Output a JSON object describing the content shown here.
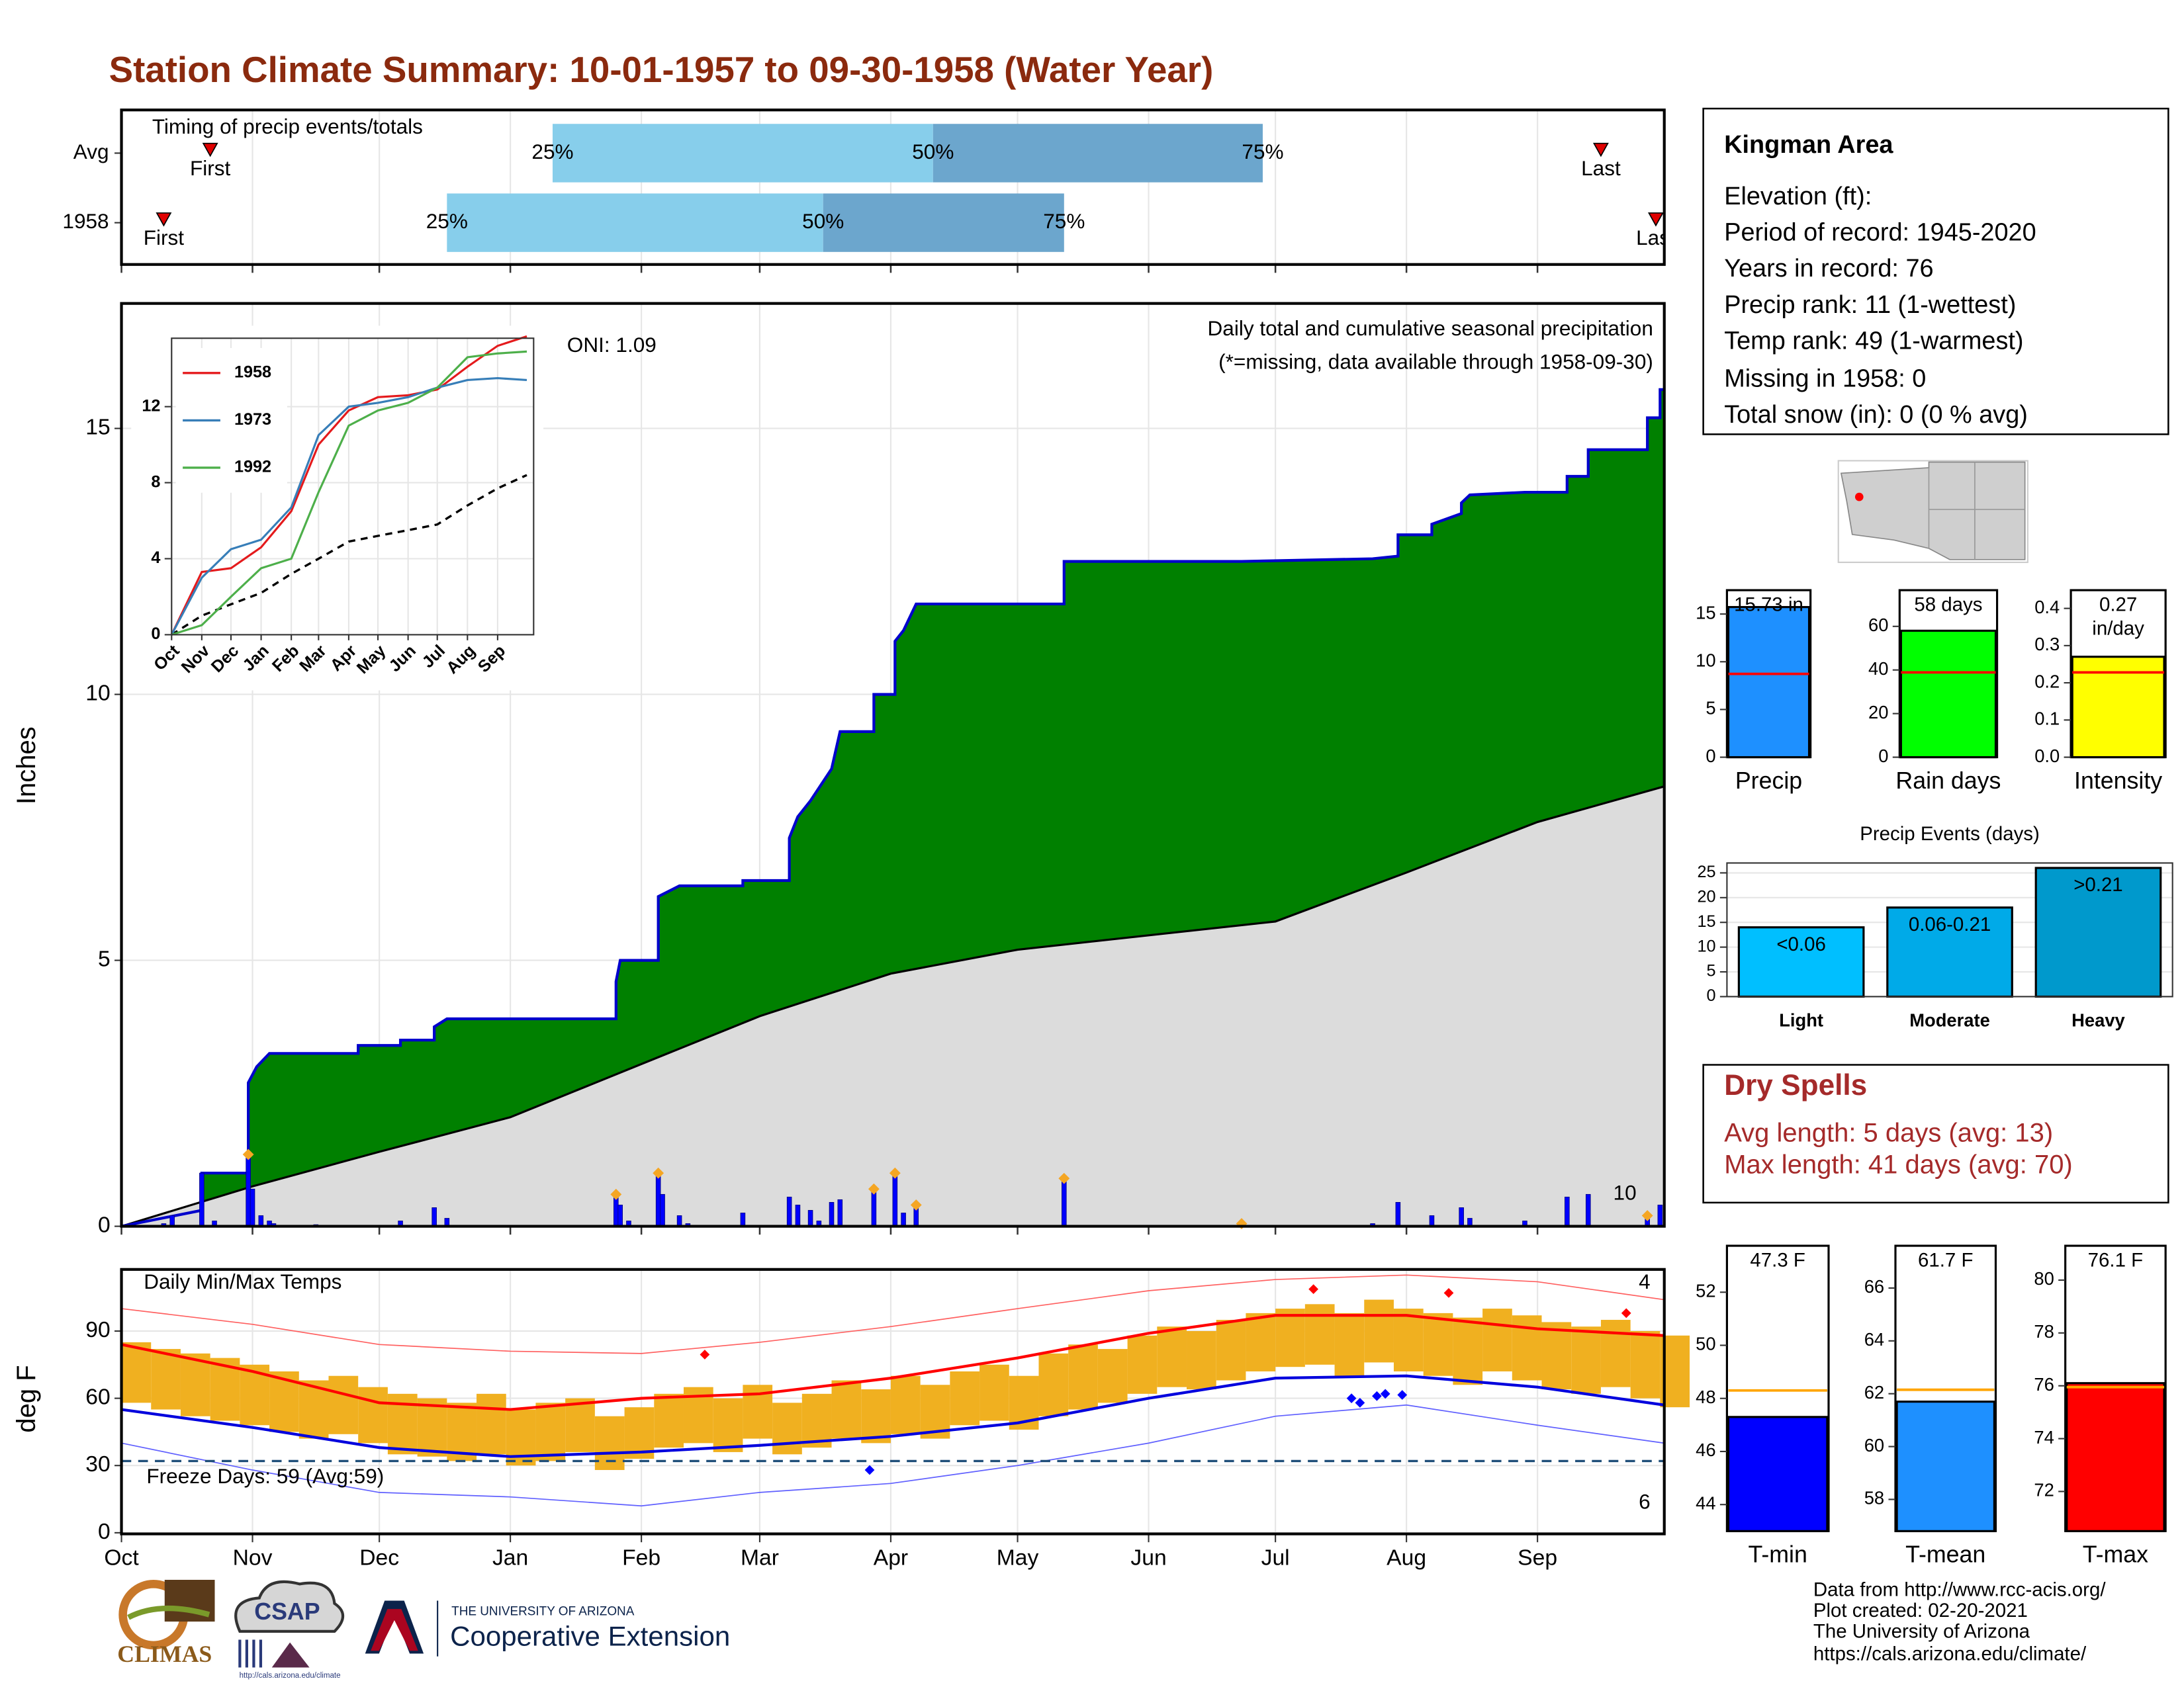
{
  "title": "Station Climate Summary: 10-01-1957 to 09-30-1958 (Water Year)",
  "chart_data": [
    {
      "type": "timing",
      "subtitle": "Timing of precip events/totals",
      "xlim": [
        0,
        365
      ],
      "labels": {
        "first": "First",
        "p25": "25%",
        "p50": "50%",
        "p75": "75%",
        "last": "Last"
      },
      "colors": [
        "#87ceeb",
        "#6ca6cd"
      ],
      "marker_color": "#e00000",
      "rows": [
        {
          "name": "Avg",
          "first": 21,
          "p25": 102,
          "p50": 192,
          "p75": 270,
          "last": 350
        },
        {
          "name": "1958",
          "first": 10,
          "p25": 77,
          "p50": 166,
          "p75": 223,
          "last": 363
        }
      ]
    },
    {
      "type": "cumulative",
      "title": "Daily total and cumulative seasonal precipitation",
      "note": "(*=missing, data available through 1958-09-30)",
      "annotation": "ONI: 1.09",
      "ylabel": "Inches",
      "xlim": [
        0,
        365
      ],
      "ylim": [
        0,
        17.35
      ],
      "yticks": [
        0,
        5,
        10,
        15
      ],
      "grid": true,
      "count_label": 10,
      "cumulative": {
        "color": "#008000",
        "line_color": "#0000cc",
        "x": [
          0,
          19,
          19,
          30,
          30,
          32,
          35,
          56,
          56,
          66,
          66,
          74,
          74,
          77,
          117,
          117,
          118,
          127,
          127,
          132,
          147,
          147,
          158,
          158,
          160,
          163,
          168,
          170,
          178,
          178,
          183,
          183,
          185,
          188,
          223,
          223,
          265,
          296,
          302,
          302,
          310,
          310,
          317,
          317,
          319,
          332,
          342,
          342,
          347,
          347,
          361,
          361,
          364,
          364,
          365
        ],
        "values": [
          0,
          0.3,
          1.0,
          1.0,
          2.7,
          3.0,
          3.25,
          3.25,
          3.4,
          3.4,
          3.5,
          3.5,
          3.75,
          3.9,
          3.9,
          4.6,
          5.0,
          5.0,
          6.2,
          6.4,
          6.4,
          6.5,
          6.5,
          7.3,
          7.7,
          8.0,
          8.6,
          9.3,
          9.3,
          10.0,
          10.0,
          11.0,
          11.2,
          11.7,
          11.7,
          12.5,
          12.5,
          12.55,
          12.6,
          13.0,
          13.0,
          13.2,
          13.4,
          13.6,
          13.75,
          13.8,
          13.8,
          14.1,
          14.1,
          14.6,
          14.6,
          15.2,
          15.2,
          15.73,
          15.73
        ]
      },
      "average": {
        "color": "#dcdcdc",
        "line_color": "#000000",
        "x": [
          0,
          31,
          61,
          92,
          123,
          151,
          182,
          212,
          243,
          273,
          304,
          335,
          365
        ],
        "values": [
          0,
          0.75,
          1.4,
          2.05,
          3.05,
          3.95,
          4.75,
          5.2,
          5.47,
          5.73,
          6.65,
          7.6,
          8.27
        ]
      },
      "daily": {
        "color": "#0000ff",
        "x": [
          10,
          12,
          19,
          22,
          30,
          31,
          33,
          35,
          36,
          46,
          66,
          74,
          77,
          117,
          118,
          120,
          127,
          128,
          132,
          134,
          147,
          158,
          160,
          163,
          165,
          168,
          170,
          178,
          183,
          185,
          188,
          223,
          265,
          296,
          302,
          310,
          317,
          319,
          332,
          342,
          347,
          361,
          364
        ],
        "values": [
          0.05,
          0.2,
          1.0,
          0.1,
          1.35,
          0.7,
          0.2,
          0.1,
          0.05,
          0.03,
          0.1,
          0.35,
          0.15,
          0.6,
          0.4,
          0.1,
          1.0,
          0.6,
          0.2,
          0.05,
          0.25,
          0.55,
          0.4,
          0.3,
          0.1,
          0.45,
          0.5,
          0.7,
          0.95,
          0.25,
          0.4,
          0.9,
          0.05,
          0.05,
          0.45,
          0.2,
          0.35,
          0.15,
          0.1,
          0.55,
          0.6,
          0.15,
          0.4
        ]
      },
      "markers": {
        "color": "#f5a623",
        "x": [
          30,
          117,
          127,
          178,
          183,
          188,
          223,
          265,
          361
        ],
        "values": [
          1.35,
          0.6,
          1.0,
          0.7,
          1.0,
          0.4,
          0.9,
          0.05,
          0.2
        ]
      }
    },
    {
      "type": "line",
      "xlim": [
        0,
        372
      ],
      "ylim": [
        0,
        15.6
      ],
      "yticks": [
        0,
        4,
        8,
        12
      ],
      "grid": true,
      "xticks": [
        {
          "value": 0,
          "label": "Oct"
        },
        {
          "value": 31,
          "label": "Nov"
        },
        {
          "value": 61,
          "label": "Dec"
        },
        {
          "value": 92,
          "label": "Jan"
        },
        {
          "value": 123,
          "label": "Feb"
        },
        {
          "value": 151,
          "label": "Mar"
        },
        {
          "value": 182,
          "label": "Apr"
        },
        {
          "value": 212,
          "label": "May"
        },
        {
          "value": 243,
          "label": "Jun"
        },
        {
          "value": 273,
          "label": "Jul"
        },
        {
          "value": 304,
          "label": "Aug"
        },
        {
          "value": 335,
          "label": "Sep"
        }
      ],
      "x": [
        0,
        31,
        61,
        92,
        123,
        151,
        182,
        212,
        243,
        273,
        304,
        335,
        365
      ],
      "series": [
        {
          "name": "1958",
          "color": "#e41a1c",
          "values": [
            0,
            3.3,
            3.5,
            4.6,
            6.5,
            10.0,
            11.8,
            12.5,
            12.6,
            12.9,
            14.1,
            15.2,
            15.7
          ]
        },
        {
          "name": "1973",
          "color": "#377eb8",
          "values": [
            0,
            3.0,
            4.5,
            5.0,
            6.7,
            10.5,
            12.0,
            12.2,
            12.5,
            13.0,
            13.4,
            13.5,
            13.4
          ]
        },
        {
          "name": "1992",
          "color": "#4daf4a",
          "values": [
            0,
            0.5,
            2.0,
            3.5,
            4.0,
            7.5,
            11.0,
            11.8,
            12.2,
            13.0,
            14.6,
            14.8,
            14.9
          ]
        }
      ],
      "average": {
        "color": "#000000",
        "values": [
          0,
          1.0,
          1.6,
          2.2,
          3.2,
          4.0,
          4.9,
          5.2,
          5.5,
          5.8,
          6.8,
          7.7,
          8.4
        ]
      }
    },
    {
      "type": "temperature",
      "subtitle": "Daily Min/Max Temps",
      "ylabel": "deg F",
      "xlim": [
        0,
        365
      ],
      "ylim": [
        -0.5,
        117.5
      ],
      "yticks": [
        0,
        30,
        60,
        90
      ],
      "grid": true,
      "xticks": [
        {
          "value": 0,
          "label": "Oct"
        },
        {
          "value": 31,
          "label": "Nov"
        },
        {
          "value": 61,
          "label": "Dec"
        },
        {
          "value": 92,
          "label": "Jan"
        },
        {
          "value": 123,
          "label": "Feb"
        },
        {
          "value": 151,
          "label": "Mar"
        },
        {
          "value": 182,
          "label": "Apr"
        },
        {
          "value": 212,
          "label": "May"
        },
        {
          "value": 243,
          "label": "Jun"
        },
        {
          "value": 273,
          "label": "Jul"
        },
        {
          "value": 304,
          "label": "Aug"
        },
        {
          "value": 335,
          "label": "Sep"
        }
      ],
      "freeze": {
        "value": 32,
        "label": "Freeze Days: 59 (Avg:59)",
        "color": "#1f4e79"
      },
      "record_high_days": 4,
      "record_low_days": 6,
      "range": {
        "color": "#f0b020",
        "width": 7,
        "x": [
          0,
          7,
          14,
          21,
          28,
          35,
          42,
          49,
          56,
          63,
          70,
          77,
          84,
          91,
          98,
          105,
          112,
          119,
          126,
          133,
          140,
          147,
          154,
          161,
          168,
          175,
          182,
          189,
          196,
          203,
          210,
          217,
          224,
          231,
          238,
          245,
          252,
          259,
          266,
          273,
          280,
          287,
          294,
          301,
          308,
          315,
          322,
          329,
          336,
          343,
          350,
          357,
          364
        ],
        "low": [
          58,
          55,
          52,
          50,
          48,
          45,
          42,
          44,
          40,
          35,
          34,
          32,
          35,
          30,
          32,
          36,
          28,
          33,
          38,
          40,
          36,
          42,
          35,
          38,
          42,
          40,
          44,
          42,
          48,
          50,
          46,
          52,
          55,
          58,
          62,
          65,
          64,
          68,
          72,
          74,
          75,
          70,
          76,
          72,
          70,
          66,
          72,
          68,
          64,
          62,
          65,
          60,
          56
        ],
        "high": [
          85,
          82,
          80,
          78,
          75,
          72,
          68,
          70,
          65,
          62,
          60,
          58,
          62,
          55,
          58,
          60,
          52,
          56,
          62,
          65,
          60,
          66,
          58,
          62,
          68,
          64,
          70,
          66,
          72,
          75,
          70,
          80,
          84,
          82,
          88,
          92,
          90,
          95,
          98,
          100,
          102,
          98,
          104,
          100,
          98,
          96,
          100,
          97,
          94,
          92,
          95,
          90,
          88
        ]
      },
      "normals": {
        "x": [
          0,
          31,
          61,
          92,
          123,
          151,
          182,
          212,
          243,
          273,
          304,
          335,
          365
        ],
        "avg_max": {
          "color": "#ff0000",
          "values": [
            84,
            72,
            58,
            55,
            60,
            62,
            69,
            78,
            89,
            97,
            97,
            91,
            88
          ]
        },
        "avg_min": {
          "color": "#0000dd",
          "values": [
            55,
            47,
            38,
            34,
            36,
            39,
            43,
            49,
            60,
            69,
            70,
            65,
            57
          ]
        },
        "record_max": {
          "color": "#ff6060",
          "values": [
            100,
            93,
            84,
            81,
            80,
            85,
            92,
            100,
            108,
            113,
            115,
            112,
            104
          ]
        },
        "record_min": {
          "color": "#6060ff",
          "values": [
            40,
            28,
            18,
            16,
            12,
            18,
            22,
            30,
            40,
            52,
            57,
            48,
            40
          ]
        }
      },
      "record_highs": {
        "color": "#ff0000",
        "x": [
          138,
          282,
          314,
          356
        ],
        "values": [
          79.5,
          108.7,
          107,
          98
        ]
      },
      "record_lows": {
        "color": "#0000ff",
        "x": [
          177,
          291,
          293,
          297,
          299,
          303
        ],
        "values": [
          28,
          60,
          58,
          61,
          62,
          61.5
        ]
      }
    },
    {
      "type": "summary_bar",
      "category": "Precip",
      "value": 15.73,
      "value_label": "15.73 in",
      "average": 8.73,
      "color": "#1e90ff",
      "average_color": "#ff0000",
      "ylim": [
        0,
        17.5
      ],
      "yticks": [
        0,
        5,
        10,
        15
      ]
    },
    {
      "type": "summary_bar",
      "category": "Rain days",
      "value": 58,
      "value_label": "58 days",
      "average": 38.9,
      "color": "#00ff00",
      "average_color": "#ff0000",
      "ylim": [
        0,
        76.6
      ],
      "yticks": [
        0,
        20,
        40,
        60
      ]
    },
    {
      "type": "summary_bar",
      "category": "Intensity",
      "value": 0.27,
      "value_label": "0.27 in/day",
      "average": 0.228,
      "color": "#ffff00",
      "average_color": "#ff0000",
      "ylim": [
        0,
        0.449
      ],
      "yticks": [
        {
          "value": 0,
          "label": "0.0"
        },
        0.1,
        0.2,
        0.3,
        0.4
      ]
    },
    {
      "type": "bar",
      "title": "Precip Events (days)",
      "categories": [
        "Light",
        "Moderate",
        "Heavy"
      ],
      "values": [
        14,
        18,
        26
      ],
      "bar_labels": [
        "<0.06",
        "0.06-0.21",
        ">0.21"
      ],
      "colors": [
        "#00bfff",
        "#00aae8",
        "#0099cc"
      ],
      "ylim": [
        0,
        27
      ],
      "yticks": [
        0,
        5,
        10,
        15,
        20,
        25
      ],
      "grid": true
    },
    {
      "type": "summary_bar",
      "category": "T-min",
      "value": 47.3,
      "value_label": "47.3 F",
      "average": 48.3,
      "color": "#0000ff",
      "average_color": "#ffa500",
      "ylim": [
        43,
        53.75
      ],
      "yticks": [
        44,
        46,
        48,
        50,
        52
      ]
    },
    {
      "type": "summary_bar",
      "category": "T-mean",
      "value": 61.7,
      "value_label": "61.7 F",
      "average": 62.15,
      "color": "#1e90ff",
      "average_color": "#ffa500",
      "ylim": [
        56.8,
        67.6
      ],
      "yticks": [
        58,
        60,
        62,
        64,
        66
      ]
    },
    {
      "type": "summary_bar",
      "category": "T-max",
      "value": 76.1,
      "value_label": "76.1 F",
      "average": 75.95,
      "color": "#ff0000",
      "average_color": "#ffa500",
      "ylim": [
        70.5,
        81.3
      ],
      "yticks": [
        72,
        74,
        76,
        78,
        80
      ]
    }
  ],
  "info": {
    "title": "Kingman Area",
    "lines": [
      "Elevation (ft):",
      "Period of record: 1945-2020",
      "Years in record: 76",
      "Precip rank: 11 (1-wettest)",
      "Temp rank: 49 (1-warmest)",
      "Missing in 1958: 0",
      "Total snow (in): 0 (0 % avg)"
    ]
  },
  "dry_spells": {
    "title": "Dry Spells",
    "lines": [
      "Avg length: 5 days (avg: 13)",
      "Max length: 41 days (avg: 70)"
    ]
  },
  "footer": [
    "Data from http://www.rcc-acis.org/",
    "Plot created: 02-20-2021",
    "The University of Arizona",
    "https://cals.arizona.edu/climate/"
  ],
  "logos": {
    "climas": "CLIMAS",
    "csap": "CSAP",
    "csap_url": "http://cals.arizona.edu/climate",
    "university": "THE UNIVERSITY OF ARIZONA",
    "extension": "Cooperative Extension"
  }
}
